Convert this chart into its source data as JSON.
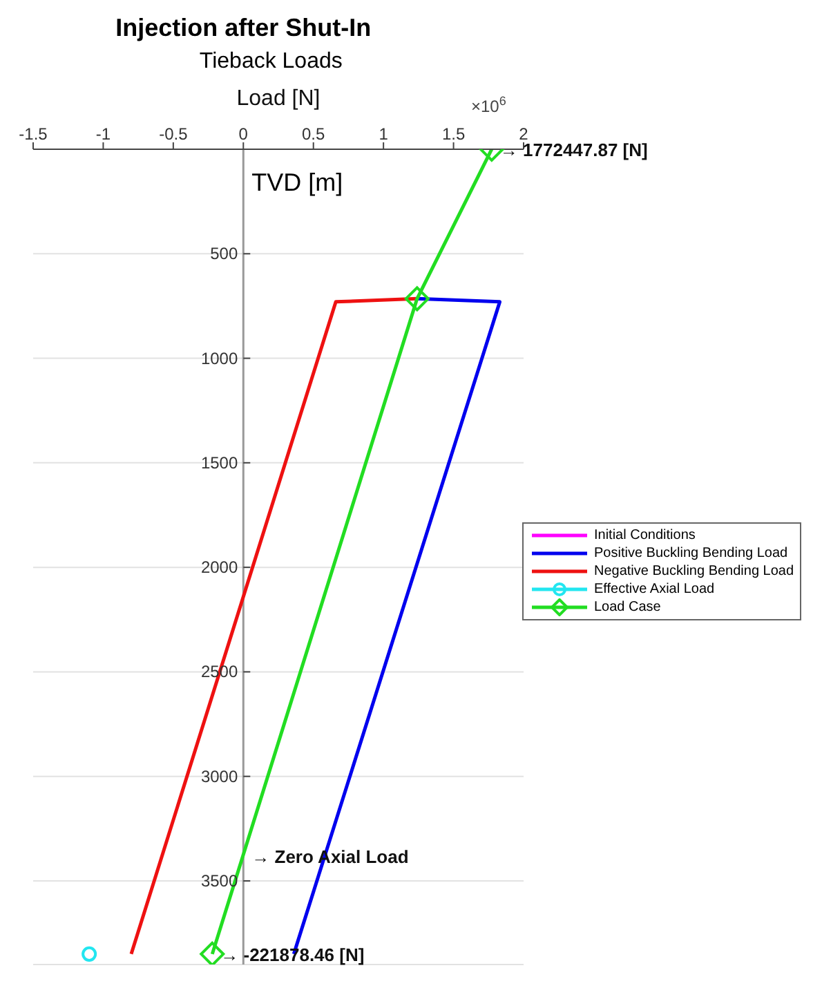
{
  "chart_data": {
    "type": "line",
    "title": "Injection after Shut-In",
    "subtitle": "Tieback Loads",
    "xlabel": "Load [N]",
    "ylabel": "TVD [m]",
    "xlim": [
      -1.5,
      2
    ],
    "xticks": [
      -1.5,
      -1,
      -0.5,
      0,
      0.5,
      1,
      1.5,
      2
    ],
    "ylim": [
      3900,
      0
    ],
    "yticks": [
      500,
      1000,
      1500,
      2000,
      2500,
      3000,
      3500
    ],
    "grid": "y",
    "legend": "right",
    "line_style": "solid",
    "series": [
      {
        "name": "Initial Conditions",
        "color": "#ff00ff",
        "marker": "none"
      },
      {
        "name": "Positive Buckling Bending Load",
        "color": "#0000ee",
        "x": [
          1.24,
          1.83,
          0.36
        ],
        "values": [
          715,
          730,
          3850
        ],
        "marker": "none"
      },
      {
        "name": "Negative Buckling Bending Load",
        "color": "#ee1111",
        "x": [
          1.24,
          0.66,
          -0.8
        ],
        "values": [
          715,
          730,
          3850
        ],
        "marker": "none"
      },
      {
        "name": "Effective Axial Load",
        "color": "#22e6f0",
        "type": "scatter",
        "x": [
          -1.1
        ],
        "values": [
          3850
        ],
        "marker": "circle"
      },
      {
        "name": "Load Case",
        "color": "#22dd22",
        "x": [
          1.772448,
          1.24,
          -0.221878
        ],
        "values": [
          0,
          715,
          3850
        ],
        "marker": "diamond"
      }
    ],
    "annotations": [
      "×10$^{6}$",
      {
        "text": "→ 1772447.87 [N]",
        "x": 1.772448,
        "y": 0
      },
      {
        "text": "→ Zero Axial Load",
        "x": 0,
        "y": 3380
      },
      {
        "text": "→ -221878.46 [N]",
        "x": -0.221878,
        "y": 3850
      }
    ]
  }
}
